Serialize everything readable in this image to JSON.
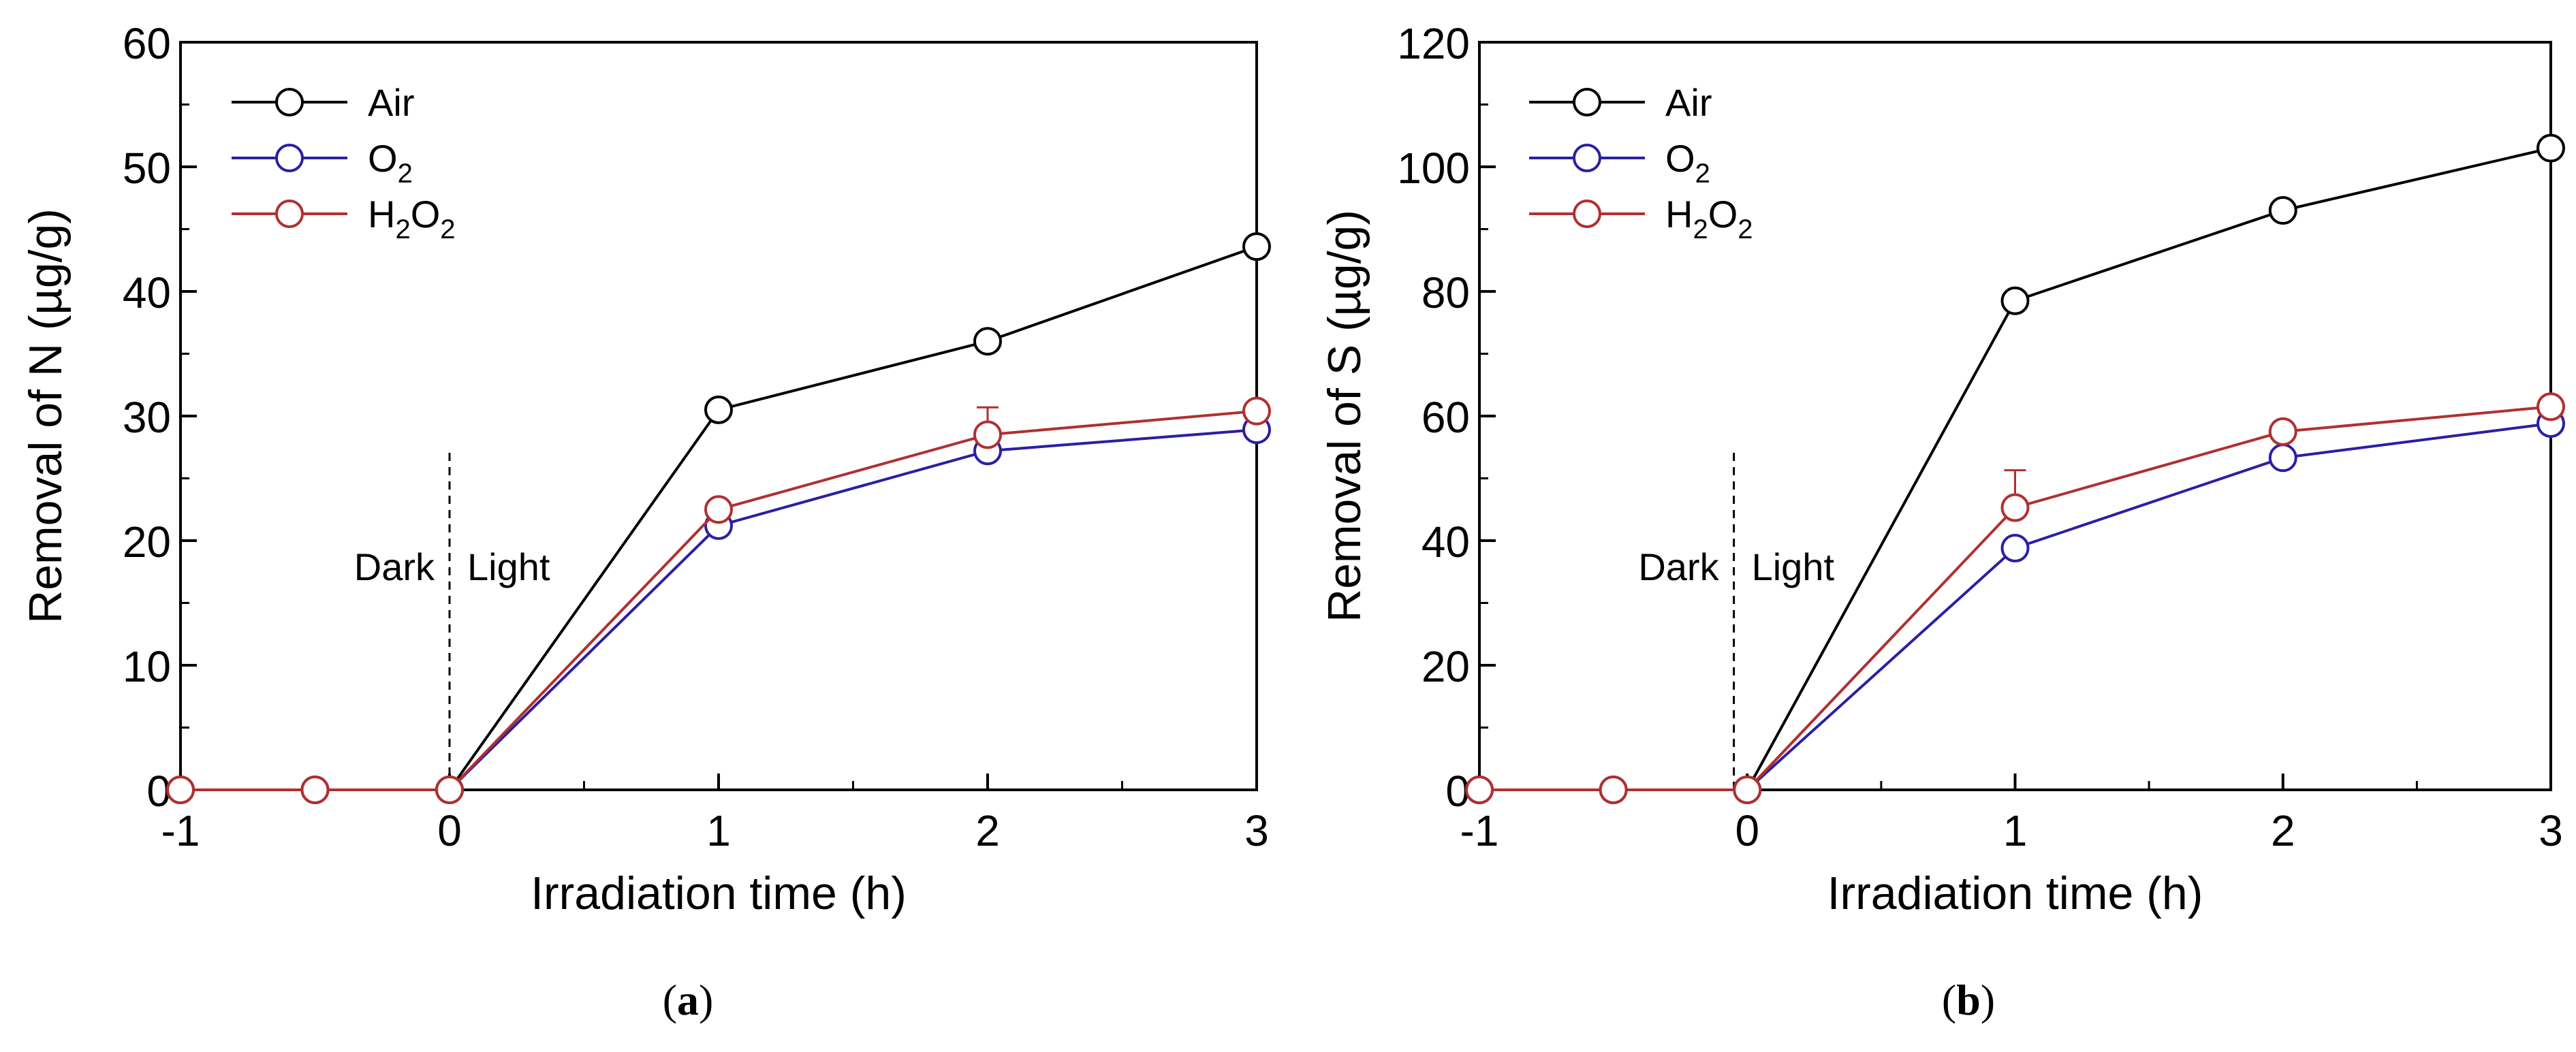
{
  "colors": {
    "air": "#000000",
    "o2": "#2b1fa3",
    "h2o2": "#b03030",
    "axis": "#000000",
    "background": "#ffffff"
  },
  "chart_data": [
    {
      "type": "line",
      "panel_label": "a",
      "xlabel": "Irradiation time (h)",
      "ylabel": "Removal of N (µg/g)",
      "xlim": [
        -1,
        3
      ],
      "ylim": [
        0,
        60
      ],
      "xticks": [
        -1,
        0,
        1,
        2,
        3
      ],
      "yticks": [
        0,
        10,
        20,
        30,
        40,
        50,
        60
      ],
      "grid": false,
      "legend_position": "top-left",
      "annotations": {
        "dark": "Dark",
        "light": "Light",
        "divider_x": 0
      },
      "series": [
        {
          "key": "air",
          "name": "Air",
          "sub": [],
          "x": [
            -1,
            -0.5,
            0,
            1,
            2,
            3
          ],
          "y": [
            0,
            0,
            0,
            30.5,
            36.0,
            43.6
          ],
          "err": [
            0,
            0,
            0,
            0,
            0,
            0
          ]
        },
        {
          "key": "o2",
          "name": "O2",
          "sub": [
            1
          ],
          "x": [
            -1,
            -0.5,
            0,
            1,
            2,
            3
          ],
          "y": [
            0,
            0,
            0,
            21.2,
            27.2,
            28.9
          ],
          "err": [
            0,
            0,
            0,
            0,
            0,
            0
          ]
        },
        {
          "key": "h2o2",
          "name": "H2O2",
          "sub": [
            1,
            3
          ],
          "x": [
            -1,
            -0.5,
            0,
            1,
            2,
            3
          ],
          "y": [
            0,
            0,
            0,
            22.5,
            28.5,
            30.4
          ],
          "err": [
            0,
            0,
            0,
            0,
            2.2,
            0.6
          ]
        }
      ]
    },
    {
      "type": "line",
      "panel_label": "b",
      "xlabel": "Irradiation time (h)",
      "ylabel": "Removal of S (µg/g)",
      "xlim": [
        -1,
        3
      ],
      "ylim": [
        0,
        120
      ],
      "xticks": [
        -1,
        0,
        1,
        2,
        3
      ],
      "yticks": [
        0,
        20,
        40,
        60,
        80,
        100,
        120
      ],
      "grid": false,
      "legend_position": "top-left",
      "annotations": {
        "dark": "Dark",
        "light": "Light",
        "divider_x": -0.05
      },
      "series": [
        {
          "key": "air",
          "name": "Air",
          "sub": [],
          "x": [
            -1,
            -0.5,
            0,
            1,
            2,
            3
          ],
          "y": [
            0,
            0,
            0,
            78.5,
            93.0,
            103.0
          ],
          "err": [
            0,
            0,
            0,
            0,
            0,
            0
          ]
        },
        {
          "key": "o2",
          "name": "O2",
          "sub": [
            1
          ],
          "x": [
            -1,
            -0.5,
            0,
            1,
            2,
            3
          ],
          "y": [
            0,
            0,
            0,
            38.8,
            53.3,
            58.8
          ],
          "err": [
            0,
            0,
            0,
            0,
            0,
            0
          ]
        },
        {
          "key": "h2o2",
          "name": "H2O2",
          "sub": [
            1,
            3
          ],
          "x": [
            -1,
            -0.5,
            0,
            1,
            2,
            3
          ],
          "y": [
            0,
            0,
            0,
            45.3,
            57.5,
            61.5
          ],
          "err": [
            0,
            0,
            0,
            6.0,
            0,
            0
          ]
        }
      ]
    }
  ]
}
